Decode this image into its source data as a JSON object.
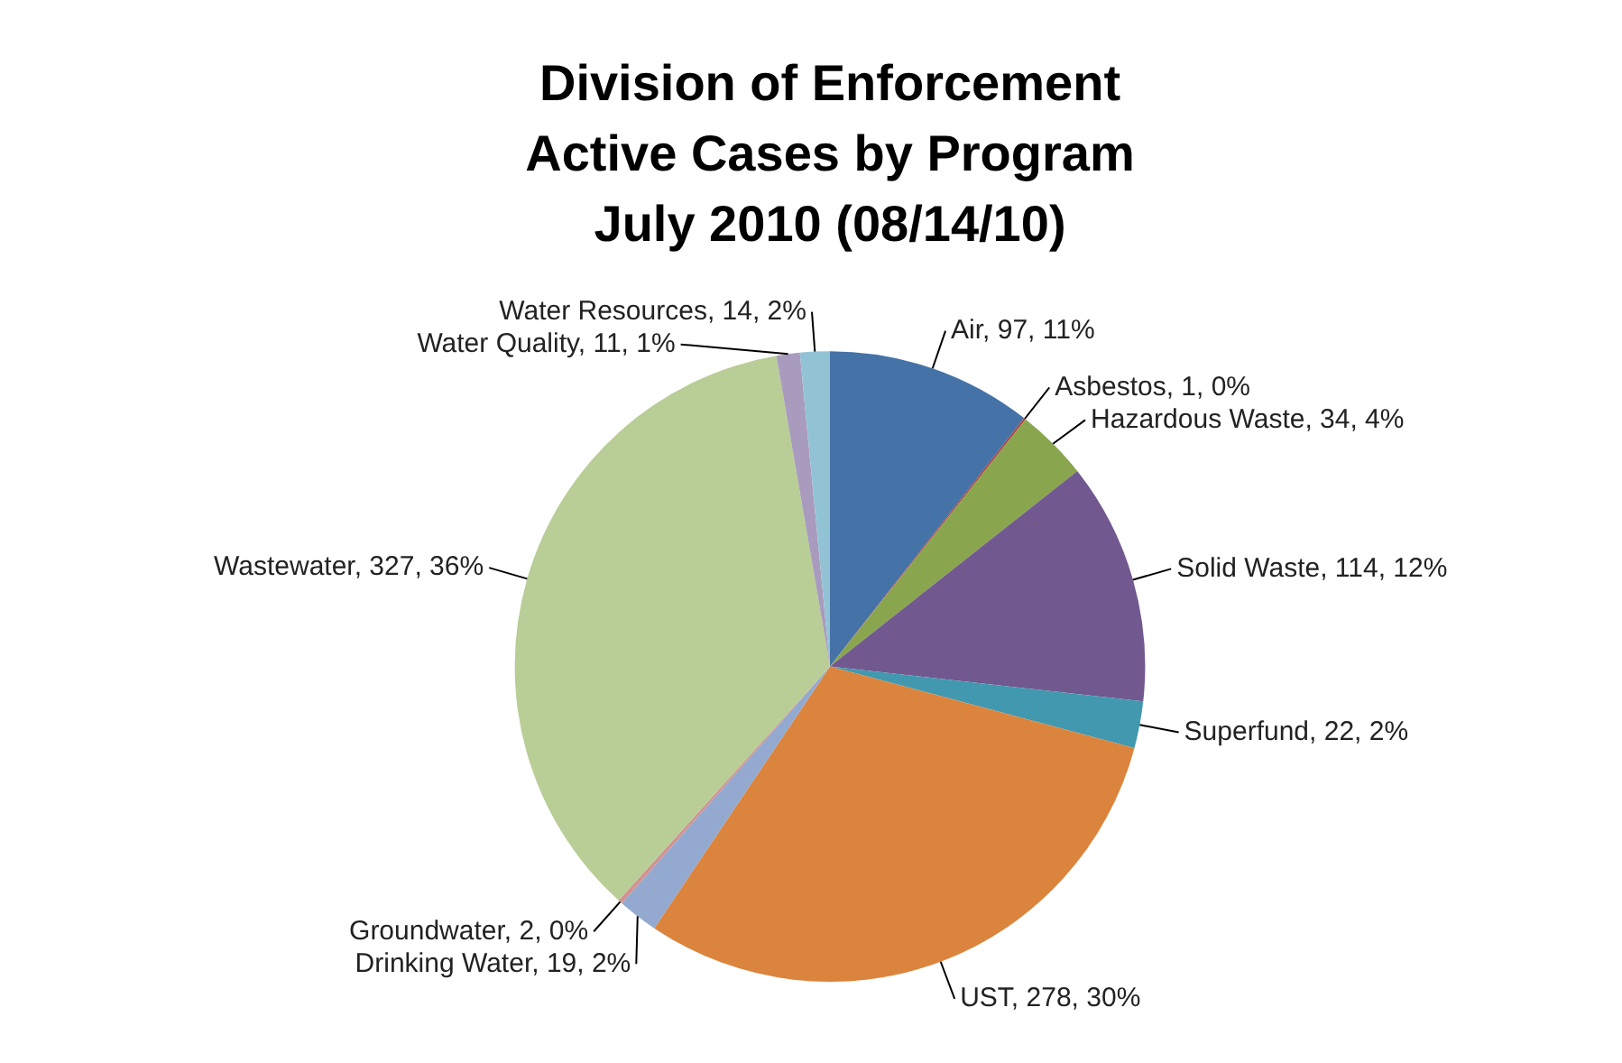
{
  "chart_data": {
    "type": "pie",
    "title": "Division of Enforcement\nActive Cases by Program\nJuly 2010 (08/14/10)",
    "categories": [
      "Air",
      "Asbestos",
      "Hazardous Waste",
      "Solid Waste",
      "Superfund",
      "UST",
      "Drinking Water",
      "Groundwater",
      "Wastewater",
      "Water Quality",
      "Water Resources"
    ],
    "values": [
      97,
      1,
      34,
      114,
      22,
      278,
      19,
      2,
      327,
      11,
      14
    ],
    "value_labels": [
      "97, 11%",
      "1, 0%",
      "34, 4%",
      "114, 12%",
      "22, 2%",
      "278, 30%",
      "19, 2%",
      "2, 0%",
      "327, 36%",
      "11, 1%",
      "14, 2%"
    ],
    "colors": [
      "#4572a7",
      "#aa4643",
      "#89a54e",
      "#71588f",
      "#4198af",
      "#db843d",
      "#93a9cf",
      "#d19392",
      "#b9cd96",
      "#a99bbd",
      "#92c3d5"
    ],
    "legend": false
  }
}
